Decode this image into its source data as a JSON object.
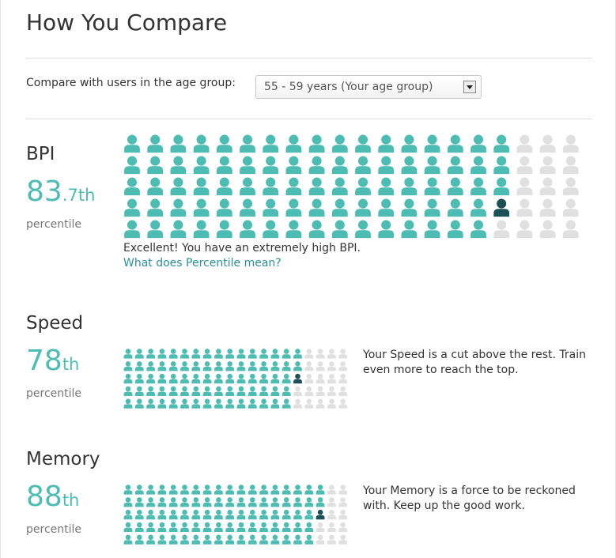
{
  "header": {
    "title": "How You Compare"
  },
  "compare": {
    "label": "Compare with users in the age group:",
    "selected": "55 - 59 years (Your age group)"
  },
  "sections": [
    {
      "name": "BPI",
      "percentile": "83",
      "suffix": ".7th",
      "unit": "percentile",
      "message": "Excellent! You have an extremely high BPI.",
      "link": "What does Percentile mean?"
    },
    {
      "name": "Speed",
      "percentile": "78",
      "suffix": "th",
      "unit": "percentile",
      "message": "Your Speed is a cut above the rest. Train even more to reach the top."
    },
    {
      "name": "Memory",
      "percentile": "88",
      "suffix": "th",
      "unit": "percentile",
      "message": "Your Memory is a force to be reckoned with. Keep up the good work."
    }
  ]
}
